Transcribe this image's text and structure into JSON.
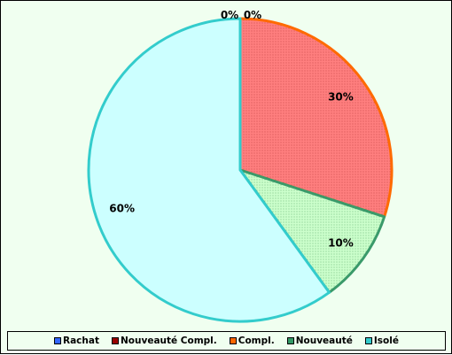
{
  "chart_data": {
    "type": "pie",
    "title": "",
    "slices": [
      {
        "name": "Rachat",
        "value": 0,
        "label": "0%",
        "fill": "#4a6fd8",
        "stroke": "#2a4fb8",
        "pattern": "none"
      },
      {
        "name": "Nouveauté Compl.",
        "value": 0,
        "label": "0%",
        "fill": "#8a0000",
        "stroke": "#5a0000",
        "pattern": "none"
      },
      {
        "name": "Compl.",
        "value": 30,
        "label": "30%",
        "fill": "#ff7f7f",
        "stroke": "#ff6a00",
        "pattern": "dots"
      },
      {
        "name": "Nouveauté",
        "value": 10,
        "label": "10%",
        "fill": "#ccffcc",
        "stroke": "#3a9a6a",
        "pattern": "dots"
      },
      {
        "name": "Isolé",
        "value": 60,
        "label": "60%",
        "fill": "#ccffff",
        "stroke": "#33cccc",
        "pattern": "none"
      }
    ],
    "legend_position": "bottom",
    "legend_swatches": {
      "Rachat": "#3366ff",
      "Nouveauté Compl.": "#990000",
      "Compl.": "#ff6600",
      "Nouveauté": "#339966",
      "Isolé": "#33cccc"
    }
  },
  "legend": [
    {
      "label": "Rachat",
      "color": "#3366ff"
    },
    {
      "label": "Nouveauté Compl.",
      "color": "#990000"
    },
    {
      "label": "Compl.",
      "color": "#ff6600"
    },
    {
      "label": "Nouveauté",
      "color": "#339966"
    },
    {
      "label": "Isolé",
      "color": "#33cccc"
    }
  ],
  "background_color": "#f0fff0"
}
